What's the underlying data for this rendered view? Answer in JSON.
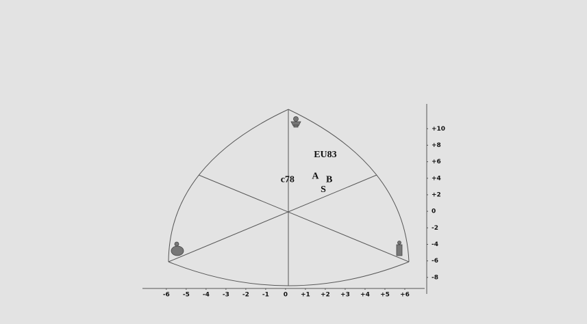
{
  "chart_data": {
    "type": "scatter",
    "points": [
      {
        "label": "EU83",
        "x": 2.0,
        "y": 6.8
      },
      {
        "label": "c78",
        "x": 0.1,
        "y": 3.8
      },
      {
        "label": "A",
        "x": 1.5,
        "y": 4.2
      },
      {
        "label": "B",
        "x": 2.2,
        "y": 3.8
      },
      {
        "label": "S",
        "x": 1.9,
        "y": 2.6
      }
    ],
    "xlim": [
      -7.2,
      7
    ],
    "xticks": [
      -6,
      -5,
      -4,
      -3,
      -2,
      -1,
      0,
      {
        "value": 1,
        "label": "+1"
      },
      {
        "value": 2,
        "label": "+2"
      },
      {
        "value": 3,
        "label": "+3"
      },
      {
        "value": 4,
        "label": "+4"
      },
      {
        "value": 5,
        "label": "+5"
      },
      {
        "value": 6,
        "label": "+6"
      }
    ],
    "ylim": [
      -10,
      13
    ],
    "yticks": [
      -8,
      -6,
      -4,
      -2,
      0,
      {
        "value": 2,
        "label": "+2"
      },
      {
        "value": 4,
        "label": "+4"
      },
      {
        "value": 6,
        "label": "+6"
      },
      {
        "value": 8,
        "label": "+8"
      },
      {
        "value": 10,
        "label": "+10"
      }
    ]
  }
}
